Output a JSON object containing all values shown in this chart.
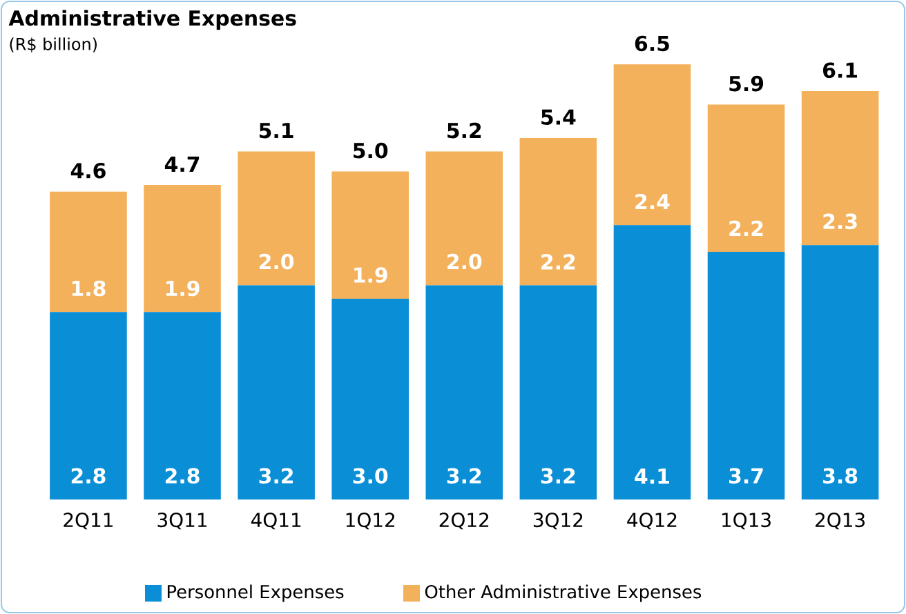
{
  "chart_data": {
    "type": "bar",
    "title": "Administrative Expenses",
    "subtitle": "(R$ billion)",
    "stacked": true,
    "legend": "bottom",
    "categories": [
      "2Q11",
      "3Q11",
      "4Q11",
      "1Q12",
      "2Q12",
      "3Q12",
      "4Q12",
      "1Q13",
      "2Q13"
    ],
    "series": [
      {
        "name": "Personnel Expenses",
        "color": "#0a8fd6",
        "values": [
          2.8,
          2.8,
          3.2,
          3.0,
          3.2,
          3.2,
          4.1,
          3.7,
          3.8
        ],
        "value_labels": [
          "2.8",
          "2.8",
          "3.2",
          "3.0",
          "3.2",
          "3.2",
          "4.1",
          "3.7",
          "3.8"
        ]
      },
      {
        "name": "Other Administrative Expenses",
        "color": "#f4b15c",
        "values": [
          1.8,
          1.9,
          2.0,
          1.9,
          2.0,
          2.2,
          2.4,
          2.2,
          2.3
        ],
        "value_labels": [
          "1.8",
          "1.9",
          "2.0",
          "1.9",
          "2.0",
          "2.2",
          "2.4",
          "2.2",
          "2.3"
        ]
      }
    ],
    "totals": [
      "4.6",
      "4.7",
      "5.1",
      "5.0",
      "5.2",
      "5.4",
      "6.5",
      "5.9",
      "6.1"
    ]
  }
}
